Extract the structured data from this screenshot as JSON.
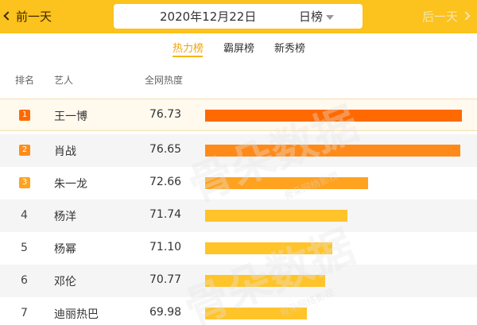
{
  "header": {
    "prev_label": "前一天",
    "next_label": "后一天",
    "date": "2020年12月22日",
    "period": "日榜"
  },
  "tabs": [
    {
      "label": "热力榜",
      "active": true
    },
    {
      "label": "霸屏榜",
      "active": false
    },
    {
      "label": "新秀榜",
      "active": false
    }
  ],
  "columns": {
    "rank": "排名",
    "artist": "艺人",
    "heat": "全网热度"
  },
  "rows": [
    {
      "rank": "1",
      "name": "王一博",
      "score": "76.73",
      "heat": 76.73,
      "color": "#ff6a00",
      "badge": "#ff6a00"
    },
    {
      "rank": "2",
      "name": "肖战",
      "score": "76.65",
      "heat": 76.65,
      "color": "#ff8a1a",
      "badge": "#ff8c1a"
    },
    {
      "rank": "3",
      "name": "朱一龙",
      "score": "72.66",
      "heat": 72.66,
      "color": "#ffa21f",
      "badge": "#ffa21f"
    },
    {
      "rank": "4",
      "name": "杨洋",
      "score": "71.74",
      "heat": 71.74,
      "color": "#ffc42a",
      "badge": ""
    },
    {
      "rank": "5",
      "name": "杨幂",
      "score": "71.10",
      "heat": 71.1,
      "color": "#ffc42a",
      "badge": ""
    },
    {
      "rank": "6",
      "name": "邓伦",
      "score": "70.77",
      "heat": 70.77,
      "color": "#ffc42a",
      "badge": ""
    },
    {
      "rank": "7",
      "name": "迪丽热巴",
      "score": "69.98",
      "heat": 69.98,
      "color": "#ffc42a",
      "badge": ""
    }
  ],
  "watermark": {
    "text": "骨朵数据",
    "sub": "骨朵网络影视"
  },
  "colors": {
    "topbar": "#fcc21d",
    "tab_active": "#f0a30a"
  }
}
